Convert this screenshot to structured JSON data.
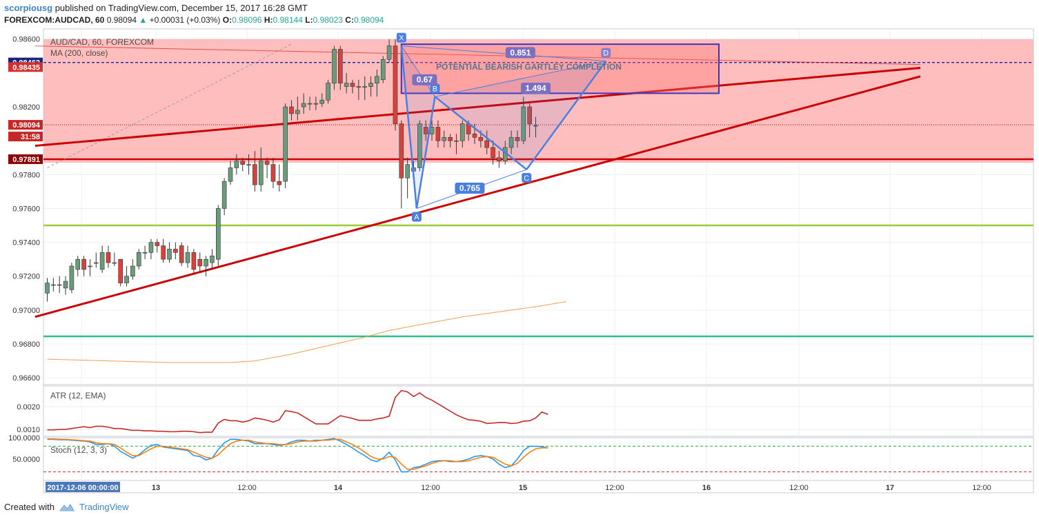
{
  "header": {
    "author": "scorpiousg",
    "published_text": "published on TradingView.com, December 15, 2017 16:28 GMT",
    "symbol": "FOREXCOM:AUDCAD, 60",
    "price": "0.98094",
    "change": "+0.00031 (+0.03%)",
    "o_label": "O:",
    "o": "0.98096",
    "h_label": "H:",
    "h": "0.98144",
    "l_label": "L:",
    "l": "0.98023",
    "c_label": "C:",
    "c": "0.98094"
  },
  "footer": {
    "created_with": "Created with",
    "brand": "TradingView"
  },
  "colors": {
    "up": "#6a9b7b",
    "down": "#d9413c",
    "zone": "#ffb3b3",
    "trend": "#cc0000",
    "harmonic": "#4a7fe0",
    "green_line": "#9acd32",
    "teal_line": "#2ebd85",
    "ma": "#f0a04b",
    "atr": "#c62828",
    "stoch_k": "#2196f3",
    "stoch_d": "#ff7f0e"
  },
  "chart_data": [
    {
      "type": "candlestick",
      "title": "AUD/CAD, 60, FOREXCOM",
      "indicator_label": "MA (200, close)",
      "ylim": [
        0.9656,
        0.9866
      ],
      "y_ticks": [
        "0.98600",
        "0.98200",
        "0.97800",
        "0.97600",
        "0.97400",
        "0.97200",
        "0.97000",
        "0.96800",
        "0.96600"
      ],
      "x_ticks": [
        "2017-12-06 00:00:00",
        "13",
        "12:00",
        "14",
        "12:00",
        "15",
        "12:00",
        "16",
        "12:00",
        "17",
        "12:00"
      ],
      "price_labels": [
        {
          "text": "0.98462",
          "value": 0.98462,
          "color": "#1a237e"
        },
        {
          "text": "0.98435",
          "value": 0.98435,
          "color": "#d32f2f"
        },
        {
          "text": "0.98094",
          "value": 0.98094,
          "color": "#c62828"
        },
        {
          "text": "31:58",
          "value": 0.98045,
          "color": "#c62828"
        },
        {
          "text": "0.97891",
          "value": 0.97891,
          "color": "#8b0000"
        }
      ],
      "candles": [
        [
          0.971,
          0.9716,
          0.9705,
          0.9719
        ],
        [
          0.9715,
          0.9715,
          0.9711,
          0.9719
        ],
        [
          0.9715,
          0.9715,
          0.971,
          0.972
        ],
        [
          0.9713,
          0.9717,
          0.9709,
          0.972
        ],
        [
          0.9712,
          0.9726,
          0.971,
          0.9728
        ],
        [
          0.9724,
          0.973,
          0.972,
          0.9732
        ],
        [
          0.973,
          0.9724,
          0.972,
          0.9732
        ],
        [
          0.9726,
          0.9726,
          0.972,
          0.973
        ],
        [
          0.9728,
          0.9728,
          0.9725,
          0.9734
        ],
        [
          0.9724,
          0.9734,
          0.9722,
          0.9738
        ],
        [
          0.9734,
          0.9728,
          0.9725,
          0.9738
        ],
        [
          0.9728,
          0.9728,
          0.9726,
          0.9734
        ],
        [
          0.973,
          0.9716,
          0.9714,
          0.973
        ],
        [
          0.9716,
          0.972,
          0.9714,
          0.9726
        ],
        [
          0.972,
          0.9726,
          0.9718,
          0.973
        ],
        [
          0.9726,
          0.9734,
          0.9724,
          0.9736
        ],
        [
          0.9734,
          0.9734,
          0.973,
          0.9738
        ],
        [
          0.9734,
          0.974,
          0.973,
          0.9742
        ],
        [
          0.974,
          0.9738,
          0.9734,
          0.9742
        ],
        [
          0.9738,
          0.973,
          0.9728,
          0.9742
        ],
        [
          0.973,
          0.9736,
          0.9728,
          0.974
        ],
        [
          0.9736,
          0.9734,
          0.973,
          0.974
        ],
        [
          0.9738,
          0.9728,
          0.9726,
          0.974
        ],
        [
          0.9728,
          0.9734,
          0.9725,
          0.9738
        ],
        [
          0.9734,
          0.9724,
          0.9722,
          0.9736
        ],
        [
          0.973,
          0.9726,
          0.9722,
          0.9734
        ],
        [
          0.9726,
          0.973,
          0.972,
          0.9732
        ],
        [
          0.9728,
          0.9732,
          0.9724,
          0.9736
        ],
        [
          0.973,
          0.976,
          0.9726,
          0.9762
        ],
        [
          0.976,
          0.9776,
          0.9756,
          0.9778
        ],
        [
          0.9776,
          0.9784,
          0.9774,
          0.9788
        ],
        [
          0.9784,
          0.9788,
          0.978,
          0.9792
        ],
        [
          0.9788,
          0.9786,
          0.9782,
          0.979
        ],
        [
          0.9786,
          0.9786,
          0.978,
          0.9792
        ],
        [
          0.9786,
          0.9774,
          0.977,
          0.9794
        ],
        [
          0.9774,
          0.9788,
          0.977,
          0.9796
        ],
        [
          0.9788,
          0.9786,
          0.9778,
          0.979
        ],
        [
          0.9786,
          0.9776,
          0.9772,
          0.979
        ],
        [
          0.9776,
          0.9774,
          0.977,
          0.9786
        ],
        [
          0.9776,
          0.982,
          0.9772,
          0.9822
        ],
        [
          0.982,
          0.9816,
          0.9812,
          0.9824
        ],
        [
          0.9816,
          0.9818,
          0.9812,
          0.9826
        ],
        [
          0.982,
          0.9822,
          0.9816,
          0.9828
        ],
        [
          0.9822,
          0.9822,
          0.9818,
          0.9826
        ],
        [
          0.9822,
          0.9822,
          0.9818,
          0.9826
        ],
        [
          0.9822,
          0.9824,
          0.982,
          0.9828
        ],
        [
          0.9824,
          0.9834,
          0.9822,
          0.9836
        ],
        [
          0.9834,
          0.9854,
          0.983,
          0.9856
        ],
        [
          0.9854,
          0.9834,
          0.983,
          0.9856
        ],
        [
          0.9832,
          0.9834,
          0.9828,
          0.984
        ],
        [
          0.9834,
          0.9832,
          0.9828,
          0.9836
        ],
        [
          0.9832,
          0.9832,
          0.9824,
          0.9836
        ],
        [
          0.9832,
          0.9832,
          0.9824,
          0.9838
        ],
        [
          0.9832,
          0.9834,
          0.9826,
          0.9838
        ],
        [
          0.9834,
          0.9838,
          0.9826,
          0.9842
        ],
        [
          0.9836,
          0.9848,
          0.9834,
          0.985
        ],
        [
          0.9848,
          0.9856,
          0.9846,
          0.986
        ],
        [
          0.9856,
          0.981,
          0.9806,
          0.986
        ],
        [
          0.981,
          0.9778,
          0.976,
          0.9812
        ],
        [
          0.9778,
          0.9786,
          0.9766,
          0.979
        ],
        [
          0.9782,
          0.9784,
          0.9776,
          0.9788
        ],
        [
          0.9784,
          0.981,
          0.9782,
          0.9812
        ],
        [
          0.9808,
          0.9804,
          0.98,
          0.9812
        ],
        [
          0.9804,
          0.9808,
          0.98,
          0.9812
        ],
        [
          0.9808,
          0.98,
          0.9796,
          0.9812
        ],
        [
          0.98,
          0.9802,
          0.9796,
          0.9806
        ],
        [
          0.9802,
          0.98,
          0.9796,
          0.9804
        ],
        [
          0.98,
          0.98,
          0.9792,
          0.9804
        ],
        [
          0.98,
          0.981,
          0.9796,
          0.9812
        ],
        [
          0.981,
          0.9804,
          0.98,
          0.9812
        ],
        [
          0.9804,
          0.9802,
          0.9798,
          0.981
        ],
        [
          0.9802,
          0.98,
          0.9796,
          0.9806
        ],
        [
          0.98,
          0.9796,
          0.9792,
          0.9806
        ],
        [
          0.9796,
          0.979,
          0.9786,
          0.98
        ],
        [
          0.979,
          0.9788,
          0.9784,
          0.9794
        ],
        [
          0.9788,
          0.9796,
          0.9786,
          0.98
        ],
        [
          0.9796,
          0.9802,
          0.9792,
          0.9806
        ],
        [
          0.9802,
          0.98,
          0.9796,
          0.9806
        ],
        [
          0.98,
          0.982,
          0.9798,
          0.9826
        ],
        [
          0.982,
          0.981,
          0.9802,
          0.9822
        ],
        [
          0.9809,
          0.9809,
          0.9802,
          0.9814
        ]
      ],
      "ma_200": [
        [
          0,
          0.9671
        ],
        [
          10,
          0.967
        ],
        [
          20,
          0.9669
        ],
        [
          30,
          0.9669
        ],
        [
          34,
          0.967
        ],
        [
          40,
          0.9674
        ],
        [
          46,
          0.9679
        ],
        [
          52,
          0.9684
        ],
        [
          56,
          0.9688
        ],
        [
          62,
          0.9692
        ],
        [
          68,
          0.9696
        ],
        [
          74,
          0.9699
        ],
        [
          80,
          0.9702
        ],
        [
          85,
          0.9705
        ]
      ],
      "horizontal_lines": [
        {
          "value": 0.98462,
          "color": "#1a1aa6",
          "style": "dashed"
        },
        {
          "value": 0.98094,
          "color": "#c62828",
          "style": "dotted"
        },
        {
          "value": 0.97891,
          "color": "#cc0000",
          "style": "solid"
        },
        {
          "value": 0.975,
          "color": "#9acd32",
          "style": "solid"
        },
        {
          "value": 0.96845,
          "color": "#2ebd85",
          "style": "solid"
        }
      ],
      "zone": {
        "top": 0.986,
        "bottom": 0.9787
      },
      "trendlines": [
        {
          "x1": -2,
          "y1": 0.9797,
          "x2": 143,
          "y2": 0.9843
        },
        {
          "x1": -2,
          "y1": 0.9696,
          "x2": 143,
          "y2": 0.9838
        },
        {
          "x1": -2,
          "y1": 0.9856,
          "x2": 143,
          "y2": 0.9845
        }
      ],
      "dashed_trend": {
        "x1": 0,
        "y1": 0.9784,
        "x2": 40,
        "y2": 0.9857
      },
      "pattern": {
        "name": "POTENTIAL BEARISH GARTLEY COMPLETION",
        "points": [
          {
            "label": "X",
            "x": 58.0,
            "y": 0.9856
          },
          {
            "label": "A",
            "x": 60.5,
            "y": 0.976
          },
          {
            "label": "B",
            "x": 63.5,
            "y": 0.9826
          },
          {
            "label": "C",
            "x": 78.5,
            "y": 0.9783
          },
          {
            "label": "D",
            "x": 91.5,
            "y": 0.9847
          }
        ],
        "ratios": [
          {
            "text": "0.67",
            "x": 61.8,
            "y": 0.9836
          },
          {
            "text": "0.765",
            "x": 69.2,
            "y": 0.9772
          },
          {
            "text": "0.851",
            "x": 77.5,
            "y": 0.9852
          },
          {
            "text": "1.494",
            "x": 80.0,
            "y": 0.9831
          }
        ],
        "box": {
          "x1": 58.0,
          "x2": 110.0,
          "top": 0.9857,
          "bottom": 0.9828
        }
      }
    },
    {
      "type": "line",
      "title": "ATR (12, EMA)",
      "ylim": [
        0.0007,
        0.0029
      ],
      "y_ticks": [
        "0.0020",
        "0.0010"
      ],
      "values": [
        0.00098,
        0.00098,
        0.001,
        0.001,
        0.00104,
        0.00108,
        0.00112,
        0.00108,
        0.00114,
        0.00114,
        0.0011,
        0.00104,
        0.00104,
        0.001,
        0.00096,
        0.00096,
        0.00094,
        0.00094,
        0.00092,
        0.00092,
        0.0009,
        0.0009,
        0.00092,
        0.00092,
        0.0009,
        0.00086,
        0.00088,
        0.00088,
        0.00128,
        0.00144,
        0.00138,
        0.00138,
        0.00132,
        0.00138,
        0.0015,
        0.00146,
        0.0014,
        0.00132,
        0.00142,
        0.00182,
        0.00178,
        0.00172,
        0.00156,
        0.0014,
        0.00124,
        0.00124,
        0.00124,
        0.00142,
        0.0016,
        0.00154,
        0.00148,
        0.0014,
        0.0014,
        0.0014,
        0.00146,
        0.0015,
        0.00158,
        0.0024,
        0.0027,
        0.00264,
        0.00244,
        0.0026,
        0.0024,
        0.00228,
        0.00212,
        0.00196,
        0.0018,
        0.00164,
        0.00152,
        0.00142,
        0.0014,
        0.00136,
        0.00126,
        0.00128,
        0.0013,
        0.0013,
        0.00126,
        0.00128,
        0.00136,
        0.00138,
        0.0015,
        0.00176,
        0.00166
      ]
    },
    {
      "type": "line",
      "title": "Stoch (12, 3, 3)",
      "ylim": [
        0,
        100
      ],
      "y_ticks": [
        "100.0000",
        "50.0000"
      ],
      "upper_band": 80,
      "lower_band": 20,
      "series": [
        {
          "values": [
            96,
            96,
            95,
            95,
            94,
            93,
            92,
            90,
            84,
            84,
            86,
            80,
            68,
            60,
            52,
            60,
            72,
            82,
            84,
            78,
            76,
            74,
            72,
            70,
            58,
            56,
            48,
            52,
            72,
            88,
            96,
            96,
            94,
            92,
            86,
            86,
            86,
            84,
            82,
            84,
            90,
            94,
            94,
            92,
            94,
            94,
            96,
            98,
            92,
            84,
            76,
            66,
            58,
            48,
            44,
            52,
            66,
            48,
            20,
            20,
            30,
            32,
            38,
            44,
            46,
            46,
            44,
            44,
            46,
            50,
            56,
            58,
            56,
            50,
            38,
            30,
            34,
            50,
            70,
            80,
            80,
            79,
            76
          ]
        },
        {
          "values": [
            97,
            97,
            96,
            96,
            95,
            94,
            93,
            92,
            88,
            86,
            86,
            84,
            76,
            66,
            58,
            58,
            66,
            74,
            80,
            80,
            78,
            76,
            74,
            72,
            66,
            60,
            54,
            52,
            60,
            74,
            86,
            92,
            94,
            94,
            90,
            88,
            86,
            86,
            84,
            84,
            86,
            90,
            92,
            92,
            92,
            94,
            94,
            96,
            96,
            90,
            84,
            76,
            66,
            56,
            50,
            50,
            56,
            54,
            38,
            26,
            26,
            30,
            34,
            40,
            44,
            46,
            46,
            44,
            44,
            46,
            50,
            54,
            56,
            54,
            46,
            38,
            34,
            40,
            54,
            66,
            74,
            76,
            76
          ]
        }
      ]
    }
  ]
}
